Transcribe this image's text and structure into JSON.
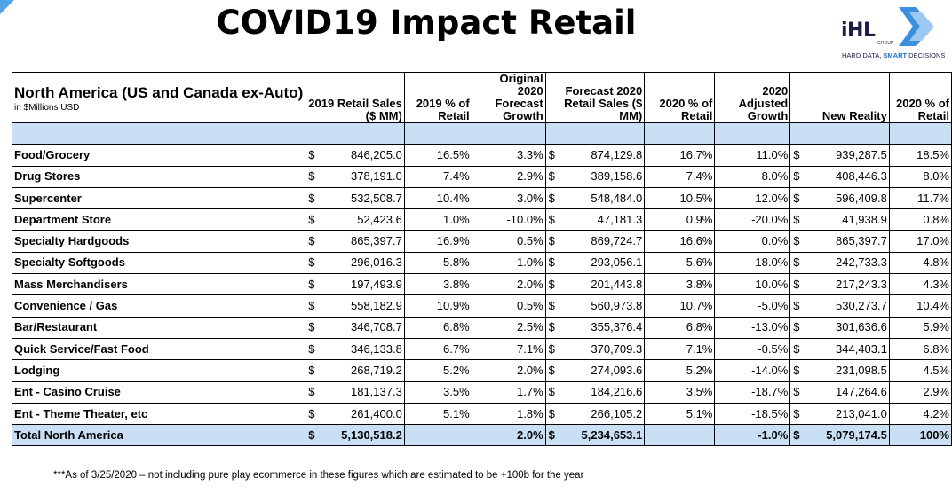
{
  "title": "COVID19 Impact Retail",
  "logo": {
    "mark": "iHL",
    "group": "GROUP",
    "tagline_prefix": "HARD DATA, ",
    "tagline_bold": "SMART",
    "tagline_suffix": " DECISIONS"
  },
  "colors": {
    "header_fill": "#c9dff3",
    "corner_accent": "#4fa3e6",
    "logo_blue": "#1f6fd0"
  },
  "header": {
    "region": "North America (US and Canada ex-Auto)",
    "units": "in $Millions USD",
    "retail_2019": "2019 Retail Sales ($ MM)",
    "pct_2019": "2019 % of Retail",
    "orig_growth": "Original 2020 Forecast Growth",
    "forecast_2020": "Forecast 2020 Retail Sales ($ MM)",
    "pct_2020": "2020 % of Retail",
    "adj_growth": "2020 Adjusted Growth",
    "new_reality": "New Reality",
    "pct_2020b": "2020 % of Retail"
  },
  "rows": [
    {
      "cat": "Food/Grocery",
      "s2019": "846,205.0",
      "p2019": "16.5%",
      "g": "3.3%",
      "f2020": "874,129.8",
      "p2020": "16.7%",
      "adj": "11.0%",
      "nr": "939,287.5",
      "pnr": "18.5%"
    },
    {
      "cat": "Drug Stores",
      "s2019": "378,191.0",
      "p2019": "7.4%",
      "g": "2.9%",
      "f2020": "389,158.6",
      "p2020": "7.4%",
      "adj": "8.0%",
      "nr": "408,446.3",
      "pnr": "8.0%"
    },
    {
      "cat": "Supercenter",
      "s2019": "532,508.7",
      "p2019": "10.4%",
      "g": "3.0%",
      "f2020": "548,484.0",
      "p2020": "10.5%",
      "adj": "12.0%",
      "nr": "596,409.8",
      "pnr": "11.7%"
    },
    {
      "cat": "Department Store",
      "s2019": "52,423.6",
      "p2019": "1.0%",
      "g": "-10.0%",
      "f2020": "47,181.3",
      "p2020": "0.9%",
      "adj": "-20.0%",
      "nr": "41,938.9",
      "pnr": "0.8%"
    },
    {
      "cat": "Specialty Hardgoods",
      "s2019": "865,397.7",
      "p2019": "16.9%",
      "g": "0.5%",
      "f2020": "869,724.7",
      "p2020": "16.6%",
      "adj": "0.0%",
      "nr": "865,397.7",
      "pnr": "17.0%"
    },
    {
      "cat": "Specialty Softgoods",
      "s2019": "296,016.3",
      "p2019": "5.8%",
      "g": "-1.0%",
      "f2020": "293,056.1",
      "p2020": "5.6%",
      "adj": "-18.0%",
      "nr": "242,733.3",
      "pnr": "4.8%"
    },
    {
      "cat": "Mass Merchandisers",
      "s2019": "197,493.9",
      "p2019": "3.8%",
      "g": "2.0%",
      "f2020": "201,443.8",
      "p2020": "3.8%",
      "adj": "10.0%",
      "nr": "217,243.3",
      "pnr": "4.3%"
    },
    {
      "cat": "Convenience / Gas",
      "s2019": "558,182.9",
      "p2019": "10.9%",
      "g": "0.5%",
      "f2020": "560,973.8",
      "p2020": "10.7%",
      "adj": "-5.0%",
      "nr": "530,273.7",
      "pnr": "10.4%"
    },
    {
      "cat": "Bar/Restaurant",
      "s2019": "346,708.7",
      "p2019": "6.8%",
      "g": "2.5%",
      "f2020": "355,376.4",
      "p2020": "6.8%",
      "adj": "-13.0%",
      "nr": "301,636.6",
      "pnr": "5.9%"
    },
    {
      "cat": "Quick Service/Fast Food",
      "s2019": "346,133.8",
      "p2019": "6.7%",
      "g": "7.1%",
      "f2020": "370,709.3",
      "p2020": "7.1%",
      "adj": "-0.5%",
      "nr": "344,403.1",
      "pnr": "6.8%"
    },
    {
      "cat": "Lodging",
      "s2019": "268,719.2",
      "p2019": "5.2%",
      "g": "2.0%",
      "f2020": "274,093.6",
      "p2020": "5.2%",
      "adj": "-14.0%",
      "nr": "231,098.5",
      "pnr": "4.5%"
    },
    {
      "cat": "Ent - Casino Cruise",
      "s2019": "181,137.3",
      "p2019": "3.5%",
      "g": "1.7%",
      "f2020": "184,216.6",
      "p2020": "3.5%",
      "adj": "-18.7%",
      "nr": "147,264.6",
      "pnr": "2.9%"
    },
    {
      "cat": "Ent - Theme Theater, etc",
      "s2019": "261,400.0",
      "p2019": "5.1%",
      "g": "1.8%",
      "f2020": "266,105.2",
      "p2020": "5.1%",
      "adj": "-18.5%",
      "nr": "213,041.0",
      "pnr": "4.2%"
    }
  ],
  "total": {
    "cat": "Total North America",
    "s2019": "5,130,518.2",
    "p2019": "",
    "g": "2.0%",
    "f2020": "5,234,653.1",
    "p2020": "",
    "adj": "-1.0%",
    "nr": "5,079,174.5",
    "pnr": "100%"
  },
  "currency_symbol": "$",
  "footnote": "***As of 3/25/2020 – not including pure play ecommerce in these figures which are estimated to be +100b for the year"
}
